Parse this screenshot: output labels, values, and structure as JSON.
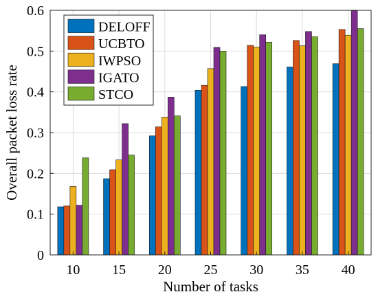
{
  "chart_data": {
    "type": "bar",
    "xlabel": "Number of tasks",
    "ylabel": "Overall packet loss rate",
    "categories": [
      "10",
      "15",
      "20",
      "25",
      "30",
      "35",
      "40"
    ],
    "ylim": [
      0,
      0.6
    ],
    "yticks": [
      "0",
      "0.1",
      "0.2",
      "0.3",
      "0.4",
      "0.5",
      "0.6"
    ],
    "grid": true,
    "legend_position": "top-left",
    "series": [
      {
        "name": "DELOFF",
        "color": "#0072BD",
        "values": [
          0.118,
          0.187,
          0.292,
          0.404,
          0.413,
          0.461,
          0.469
        ]
      },
      {
        "name": "UCBTO",
        "color": "#D95319",
        "values": [
          0.12,
          0.209,
          0.314,
          0.416,
          0.514,
          0.526,
          0.553
        ]
      },
      {
        "name": "IWPSO",
        "color": "#EDB120",
        "values": [
          0.168,
          0.233,
          0.338,
          0.457,
          0.51,
          0.513,
          0.539
        ]
      },
      {
        "name": "IGATO",
        "color": "#7E2F8E",
        "values": [
          0.122,
          0.322,
          0.387,
          0.509,
          0.54,
          0.548,
          0.599
        ]
      },
      {
        "name": "STCO",
        "color": "#77AC30",
        "values": [
          0.238,
          0.245,
          0.341,
          0.5,
          0.522,
          0.535,
          0.555
        ]
      }
    ]
  }
}
